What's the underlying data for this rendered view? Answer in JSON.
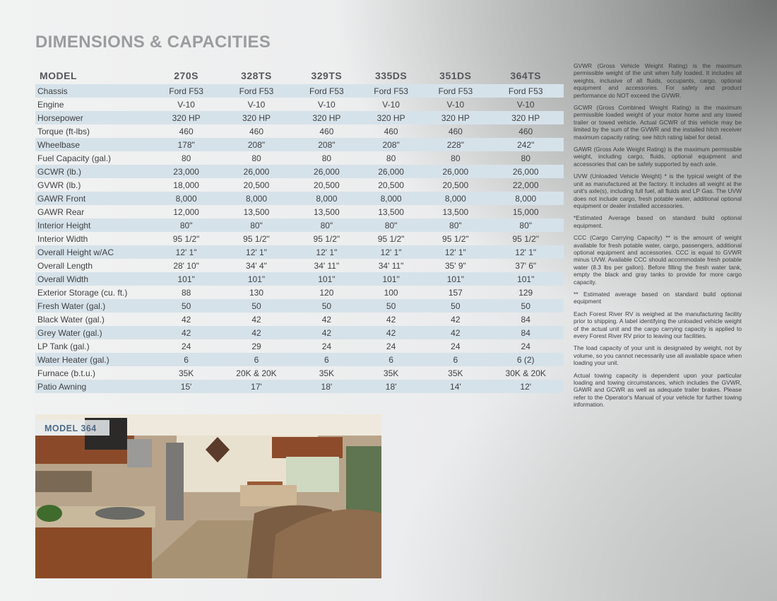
{
  "title": "DIMENSIONS & CAPACITIES",
  "table": {
    "header": [
      "MODEL",
      "270S",
      "328TS",
      "329TS",
      "335DS",
      "351DS",
      "364TS"
    ],
    "rows": [
      [
        "Chassis",
        "Ford F53",
        "Ford F53",
        "Ford F53",
        "Ford F53",
        "Ford F53",
        "Ford F53"
      ],
      [
        "Engine",
        "V-10",
        "V-10",
        "V-10",
        "V-10",
        "V-10",
        "V-10"
      ],
      [
        "Horsepower",
        "320 HP",
        "320 HP",
        "320 HP",
        "320 HP",
        "320 HP",
        "320 HP"
      ],
      [
        "Torque (ft-lbs)",
        "460",
        "460",
        "460",
        "460",
        "460",
        "460"
      ],
      [
        "Wheelbase",
        "178\"",
        "208\"",
        "208\"",
        "208\"",
        "228\"",
        "242\""
      ],
      [
        "Fuel Capacity (gal.)",
        "80",
        "80",
        "80",
        "80",
        "80",
        "80"
      ],
      [
        "GCWR (lb.)",
        "23,000",
        "26,000",
        "26,000",
        "26,000",
        "26,000",
        "26,000"
      ],
      [
        "GVWR (lb.)",
        "18,000",
        "20,500",
        "20,500",
        "20,500",
        "20,500",
        "22,000"
      ],
      [
        "GAWR Front",
        "8,000",
        "8,000",
        "8,000",
        "8,000",
        "8,000",
        "8,000"
      ],
      [
        "GAWR Rear",
        "12,000",
        "13,500",
        "13,500",
        "13,500",
        "13,500",
        "15,000"
      ],
      [
        "Interior Height",
        "80\"",
        "80\"",
        "80\"",
        "80\"",
        "80\"",
        "80\""
      ],
      [
        "Interior Width",
        "95 1/2\"",
        "95 1/2\"",
        "95 1/2\"",
        "95 1/2\"",
        "95 1/2\"",
        "95 1/2\""
      ],
      [
        "Overall Height w/AC",
        "12' 1\"",
        "12' 1\"",
        "12' 1\"",
        "12' 1\"",
        "12' 1\"",
        "12' 1\""
      ],
      [
        "Overall Length",
        "28' 10\"",
        "34' 4\"",
        "34' 11\"",
        "34' 11\"",
        "35' 9\"",
        "37' 6\""
      ],
      [
        "Overall Width",
        "101\"",
        "101\"",
        "101\"",
        "101\"",
        "101\"",
        "101\""
      ],
      [
        "Exterior Storage (cu. ft.)",
        "88",
        "130",
        "120",
        "100",
        "157",
        "129"
      ],
      [
        "Fresh Water (gal.)",
        "50",
        "50",
        "50",
        "50",
        "50",
        "50"
      ],
      [
        "Black Water (gal.)",
        "42",
        "42",
        "42",
        "42",
        "42",
        "84"
      ],
      [
        "Grey Water (gal.)",
        "42",
        "42",
        "42",
        "42",
        "42",
        "84"
      ],
      [
        "LP Tank (gal.)",
        "24",
        "29",
        "24",
        "24",
        "24",
        "24"
      ],
      [
        "Water Heater (gal.)",
        "6",
        "6",
        "6",
        "6",
        "6",
        "6 (2)"
      ],
      [
        "Furnace (b.t.u.)",
        "35K",
        "20K & 20K",
        "35K",
        "35K",
        "35K",
        "30K & 20K"
      ],
      [
        "Patio Awning",
        "15'",
        "17'",
        "18'",
        "18'",
        "14'",
        "12'"
      ]
    ]
  },
  "notes": [
    "GVWR (Gross Vehicle Weight Rating) is the maximum permissible weight of the unit when fully loaded. It includes all weights, inclusive of all fluids, occupants, cargo, optional equipment and accessories. For safety and product performance do NOT exceed the GVWR.",
    "GCWR (Gross Combined Weight Rating) is the maximum permissible loaded weight of your motor home and any towed trailer or towed vehicle. Actual GCWR of this vehicle may be limited by the sum of the GVWR and the installed hitch receiver maximum capacity rating; see hitch rating label for detail.",
    "GAWR (Gross Axle Weight Rating) is the maximum permissible weight, including cargo, fluids, optional equipment and accessories that can be safely supported by each axle.",
    "UVW (Unloaded Vehicle Weight) * is the typical weight of the unit as manufactured at the factory. It includes all weight at the unit's axle(s), including full fuel, all fluids and LP Gas. The UVW does not include cargo, fresh potable water, additional optional equipment or dealer installed accessories.",
    "*Estimated Average based on standard build optional equipment.",
    "CCC (Cargo Carrying Capacity) ** is the amount of weight available for fresh potable water, cargo, passengers, additional optional equipment and accessories. CCC is equal to GVWR minus UVW. Available CCC should accommodate fresh potable water (8.3 lbs per gallon). Before filling the fresh water tank, empty the black and gray tanks to provide for more cargo capacity.",
    "** Estimated average based on standard build optional equipment",
    "Each Forest River RV is weighed at the manufacturing facility prior to shipping. A label identifying the unloaded vehicle weight of the actual unit and the cargo carrying capacity is applied to every Forest River RV prior to leaving our facilities.",
    "The load capacity of your unit is designated by weight, not by volume, so you cannot necessarily use all available space when loading your unit.",
    "Actual towing capacity is dependent upon your particular loading and towing circumstances, which includes the GVWR, GAWR and GCWR as well as adequate trailer brakes. Please refer to the Operator's Manual of your vehicle for further towing information."
  ],
  "photo": {
    "caption": "MODEL 364"
  }
}
